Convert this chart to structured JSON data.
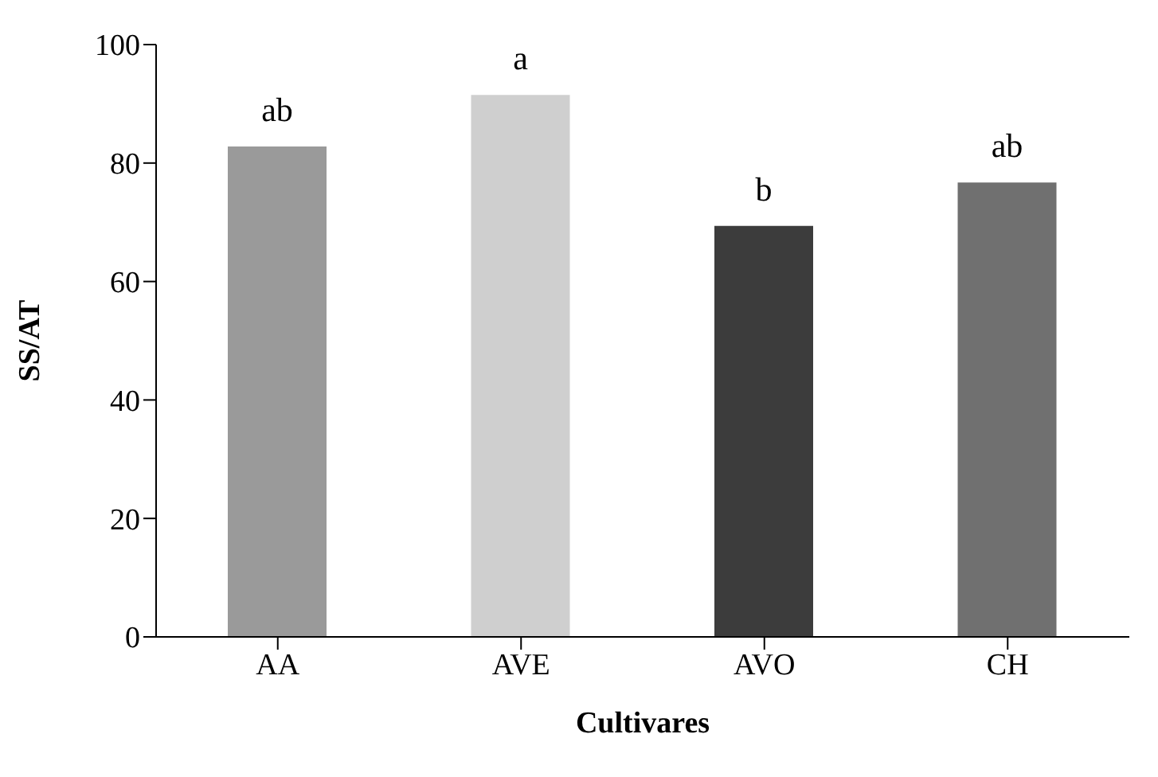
{
  "chart_data": {
    "type": "bar",
    "xlabel": "Cultivares",
    "ylabel": "SS/AT",
    "categories": [
      "AA",
      "AVE",
      "AVO",
      "CH"
    ],
    "values": [
      82.8,
      91.5,
      69.4,
      76.7
    ],
    "colors": [
      "#9a9a9a",
      "#cfcfcf",
      "#3c3c3c",
      "#707070"
    ],
    "ylim": [
      0,
      100
    ],
    "yticks": [
      0,
      20,
      40,
      60,
      80,
      100
    ],
    "grid": false,
    "legend": false,
    "value_labels": [
      "ab",
      "a",
      "b",
      "ab"
    ]
  }
}
